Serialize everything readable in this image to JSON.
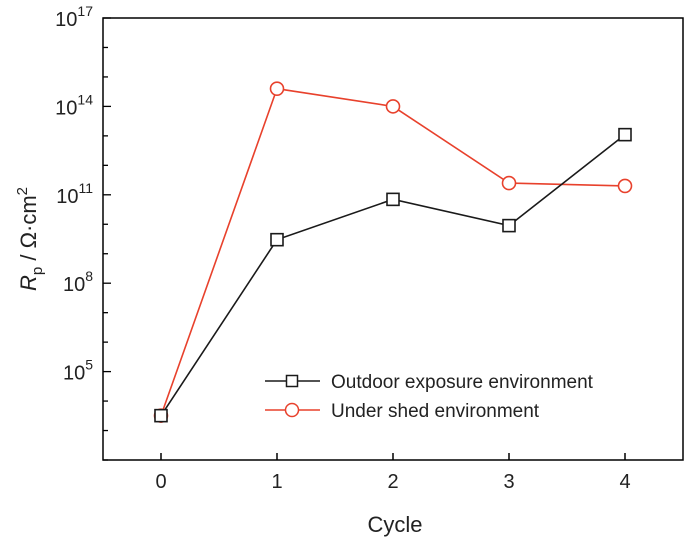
{
  "chart_data": {
    "type": "line",
    "title": "",
    "xlabel": "Cycle",
    "ylabel": {
      "symbol": "R",
      "subscript": "p",
      "unit": " / Ω·cm",
      "unit_exponent": "2"
    },
    "x": [
      0,
      1,
      2,
      3,
      4
    ],
    "xlim": [
      -0.5,
      4.5
    ],
    "x_ticks": [
      "0",
      "1",
      "2",
      "3",
      "4"
    ],
    "y_scale": "log",
    "ylim": [
      100.0,
      1e+17
    ],
    "y_ticks": [
      {
        "value": 100000.0,
        "base": "10",
        "exp": "5"
      },
      {
        "value": 100000000.0,
        "base": "10",
        "exp": "8"
      },
      {
        "value": 100000000000.0,
        "base": "10",
        "exp": "11"
      },
      {
        "value": 100000000000000.0,
        "base": "10",
        "exp": "14"
      },
      {
        "value": 1e+17,
        "base": "10",
        "exp": "17"
      }
    ],
    "grid": false,
    "legend_position": "lower-right",
    "series": [
      {
        "name": "Outdoor exposure environment",
        "marker": "square",
        "color": "#1a1a1a",
        "values": [
          3200.0,
          3000000000.0,
          70000000000.0,
          9000000000.0,
          11000000000000.0
        ]
      },
      {
        "name": "Under shed environment",
        "marker": "circle",
        "color": "#e8412c",
        "values": [
          3200.0,
          400000000000000.0,
          100000000000000.0,
          250000000000.0,
          200000000000.0
        ]
      }
    ]
  }
}
